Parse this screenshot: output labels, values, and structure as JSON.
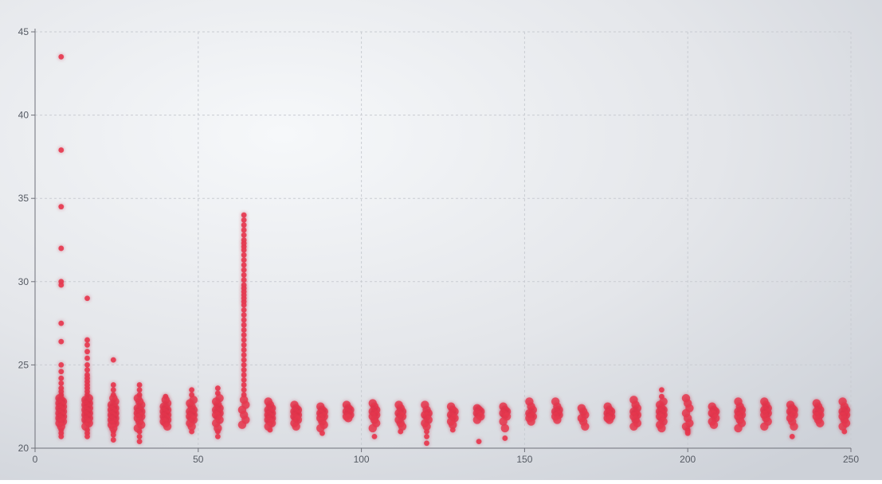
{
  "chart_data": {
    "type": "scatter",
    "title": "",
    "xlabel": "",
    "ylabel": "",
    "xlim": [
      0,
      250
    ],
    "ylim": [
      20,
      45
    ],
    "x_ticks": [
      0,
      50,
      100,
      150,
      200,
      250
    ],
    "y_ticks": [
      20,
      25,
      30,
      35,
      40,
      45
    ],
    "grid": true,
    "marker_color": "#e8384f",
    "clusters": [
      {
        "x": 8,
        "values": [
          43.5,
          37.9,
          34.5,
          32.0,
          30.0,
          29.8,
          27.5,
          26.4,
          25.0,
          24.6,
          24.2,
          23.9,
          23.6,
          23.4,
          23.2,
          23.0,
          22.9,
          22.8,
          22.7,
          22.6,
          22.5,
          22.4,
          22.3,
          22.2,
          22.1,
          22.0,
          21.9,
          21.8,
          21.7,
          21.6,
          21.5,
          21.3,
          21.1,
          20.9,
          20.7
        ]
      },
      {
        "x": 16,
        "values": [
          29.0,
          26.5,
          26.2,
          25.8,
          25.4,
          25.0,
          24.7,
          24.4,
          24.2,
          24.0,
          23.8,
          23.6,
          23.4,
          23.2,
          23.0,
          22.9,
          22.8,
          22.7,
          22.6,
          22.5,
          22.4,
          22.3,
          22.2,
          22.1,
          22.0,
          21.9,
          21.8,
          21.7,
          21.6,
          21.5,
          21.3,
          21.1,
          20.9,
          20.7
        ]
      },
      {
        "x": 24,
        "values": [
          25.3,
          23.8,
          23.5,
          23.2,
          23.0,
          22.8,
          22.6,
          22.5,
          22.4,
          22.3,
          22.2,
          22.1,
          22.0,
          21.9,
          21.8,
          21.7,
          21.6,
          21.5,
          21.4,
          21.2,
          21.0,
          20.8,
          20.5
        ]
      },
      {
        "x": 32,
        "values": [
          23.8,
          23.5,
          23.2,
          23.0,
          22.8,
          22.6,
          22.4,
          22.3,
          22.2,
          22.1,
          22.0,
          21.9,
          21.8,
          21.6,
          21.4,
          21.2,
          21.0,
          20.7,
          20.4
        ]
      },
      {
        "x": 40,
        "values": [
          23.1,
          22.9,
          22.7,
          22.5,
          22.4,
          22.3,
          22.2,
          22.1,
          22.0,
          21.9,
          21.8,
          21.7,
          21.6,
          21.5,
          21.3
        ]
      },
      {
        "x": 48,
        "values": [
          23.5,
          23.2,
          22.9,
          22.7,
          22.5,
          22.3,
          22.2,
          22.1,
          22.0,
          21.9,
          21.8,
          21.7,
          21.5,
          21.3,
          21.0
        ]
      },
      {
        "x": 56,
        "values": [
          23.6,
          23.3,
          23.0,
          22.8,
          22.6,
          22.4,
          22.3,
          22.2,
          22.1,
          22.0,
          21.9,
          21.7,
          21.5,
          21.2,
          21.0,
          20.7
        ]
      },
      {
        "x": 64,
        "values": [
          34.0,
          33.7,
          33.4,
          33.1,
          32.8,
          32.5,
          32.3,
          32.1,
          31.9,
          31.6,
          31.3,
          31.0,
          30.7,
          30.4,
          30.1,
          29.8,
          29.6,
          29.4,
          29.2,
          29.0,
          28.8,
          28.6,
          28.3,
          28.0,
          27.7,
          27.4,
          27.1,
          26.8,
          26.5,
          26.2,
          25.9,
          25.6,
          25.3,
          25.0,
          24.7,
          24.4,
          24.1,
          23.8,
          23.5,
          23.2,
          22.9,
          22.6,
          22.3,
          22.0,
          21.7,
          21.4
        ]
      },
      {
        "x": 72,
        "values": [
          22.8,
          22.6,
          22.4,
          22.3,
          22.2,
          22.1,
          22.0,
          21.9,
          21.8,
          21.7,
          21.6,
          21.5,
          21.3,
          21.1
        ]
      },
      {
        "x": 80,
        "values": [
          22.6,
          22.4,
          22.3,
          22.2,
          22.1,
          22.0,
          21.9,
          21.8,
          21.7,
          21.5,
          21.3
        ]
      },
      {
        "x": 88,
        "values": [
          22.5,
          22.3,
          22.2,
          22.1,
          22.0,
          21.9,
          21.8,
          21.6,
          21.4,
          21.2,
          20.9
        ]
      },
      {
        "x": 96,
        "values": [
          22.6,
          22.4,
          22.3,
          22.2,
          22.1,
          22.0,
          21.9,
          21.8
        ]
      },
      {
        "x": 104,
        "values": [
          22.7,
          22.5,
          22.3,
          22.2,
          22.1,
          22.0,
          21.9,
          21.7,
          21.5,
          21.2,
          20.7
        ]
      },
      {
        "x": 112,
        "values": [
          22.6,
          22.4,
          22.2,
          22.1,
          22.0,
          21.9,
          21.7,
          21.5,
          21.3,
          21.0
        ]
      },
      {
        "x": 120,
        "values": [
          22.6,
          22.3,
          22.1,
          22.0,
          21.9,
          21.7,
          21.5,
          21.3,
          21.0,
          20.7,
          20.3
        ]
      },
      {
        "x": 128,
        "values": [
          22.5,
          22.3,
          22.2,
          22.0,
          21.9,
          21.8,
          21.6,
          21.4,
          21.1
        ]
      },
      {
        "x": 136,
        "values": [
          22.4,
          22.3,
          22.2,
          22.1,
          22.0,
          21.9,
          21.7,
          20.4
        ]
      },
      {
        "x": 144,
        "values": [
          22.5,
          22.3,
          22.2,
          22.1,
          22.0,
          21.9,
          21.6,
          21.2,
          20.6
        ]
      },
      {
        "x": 152,
        "values": [
          22.8,
          22.5,
          22.3,
          22.1,
          22.0,
          21.9,
          21.8,
          21.6
        ]
      },
      {
        "x": 160,
        "values": [
          22.8,
          22.5,
          22.3,
          22.2,
          22.1,
          22.0,
          21.9,
          21.7
        ]
      },
      {
        "x": 168,
        "values": [
          22.4,
          22.2,
          22.0,
          21.8,
          21.6,
          21.3
        ]
      },
      {
        "x": 176,
        "values": [
          22.5,
          22.3,
          22.2,
          22.1,
          22.0,
          21.9,
          21.8,
          21.7
        ]
      },
      {
        "x": 184,
        "values": [
          22.9,
          22.6,
          22.4,
          22.2,
          22.1,
          22.0,
          21.9,
          21.7,
          21.5,
          21.3
        ]
      },
      {
        "x": 192,
        "values": [
          23.5,
          23.1,
          22.8,
          22.6,
          22.4,
          22.3,
          22.2,
          22.1,
          22.0,
          21.9,
          21.8,
          21.6,
          21.4,
          21.2
        ]
      },
      {
        "x": 200,
        "values": [
          23.0,
          22.7,
          22.4,
          22.1,
          21.8,
          21.5,
          21.3,
          21.1,
          21.0,
          20.9
        ]
      },
      {
        "x": 208,
        "values": [
          22.5,
          22.3,
          22.2,
          22.1,
          22.0,
          21.8,
          21.6,
          21.4
        ]
      },
      {
        "x": 216,
        "values": [
          22.8,
          22.5,
          22.3,
          22.2,
          22.1,
          22.0,
          21.9,
          21.7,
          21.5,
          21.2
        ]
      },
      {
        "x": 224,
        "values": [
          22.8,
          22.6,
          22.4,
          22.3,
          22.2,
          22.1,
          22.0,
          21.8,
          21.6,
          21.3
        ]
      },
      {
        "x": 232,
        "values": [
          22.6,
          22.4,
          22.3,
          22.2,
          22.1,
          22.0,
          21.8,
          21.6,
          21.3,
          20.7
        ]
      },
      {
        "x": 240,
        "values": [
          22.7,
          22.5,
          22.3,
          22.2,
          22.1,
          22.0,
          21.9,
          21.7,
          21.5
        ]
      },
      {
        "x": 248,
        "values": [
          22.8,
          22.5,
          22.3,
          22.2,
          22.1,
          22.0,
          21.9,
          21.7,
          21.5,
          21.3,
          21.0
        ]
      }
    ]
  }
}
